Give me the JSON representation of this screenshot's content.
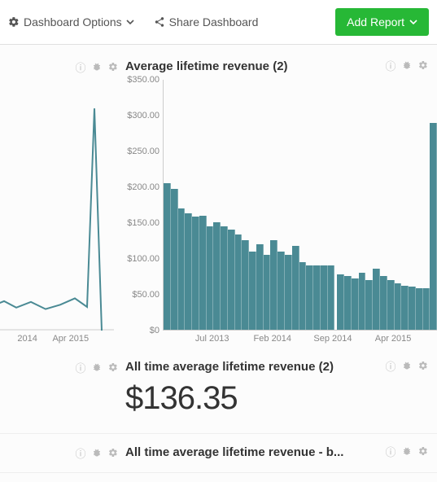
{
  "toolbar": {
    "options_label": "Dashboard Options",
    "share_label": "Share Dashboard",
    "add_report_label": "Add Report"
  },
  "colors": {
    "series": "#4a8a94",
    "line": "#4a8a94",
    "grid": "#cccccc",
    "axis_text": "#888888",
    "icon": "#bbbbbb",
    "accent": "#27b836",
    "bg": "#fcfcfc"
  },
  "left_partial_chart": {
    "type": "line",
    "x_labels": [
      {
        "label": "2014",
        "pos_pct": 24
      },
      {
        "label": "Apr 2015",
        "pos_pct": 62
      }
    ],
    "ylim": [
      0,
      350
    ],
    "points": [
      {
        "x": 0,
        "y": 34
      },
      {
        "x": 10,
        "y": 41
      },
      {
        "x": 20,
        "y": 32
      },
      {
        "x": 32,
        "y": 40
      },
      {
        "x": 44,
        "y": 30
      },
      {
        "x": 56,
        "y": 36
      },
      {
        "x": 68,
        "y": 45
      },
      {
        "x": 78,
        "y": 33
      },
      {
        "x": 84,
        "y": 310
      },
      {
        "x": 90,
        "y": 0
      }
    ],
    "line_color": "#4a8a94",
    "line_width": 2,
    "axis_visible_bottom": true
  },
  "main_chart": {
    "title": "Average lifetime revenue (2)",
    "type": "bar",
    "ylim": [
      0,
      350
    ],
    "ytick_step": 50,
    "ytick_labels": [
      "$0",
      "$50.00",
      "$100.00",
      "$150.00",
      "$200.00",
      "$250.00",
      "$300.00",
      "$350.00"
    ],
    "x_labels": [
      {
        "label": "Jul 2013",
        "pos_pct": 18
      },
      {
        "label": "Feb 2014",
        "pos_pct": 40
      },
      {
        "label": "Sep 2014",
        "pos_pct": 62
      },
      {
        "label": "Apr 2015",
        "pos_pct": 84
      }
    ],
    "bar_color": "#4a8a94",
    "values": [
      205,
      197,
      170,
      163,
      158,
      160,
      145,
      150,
      145,
      140,
      133,
      125,
      110,
      120,
      105,
      125,
      110,
      105,
      118,
      95,
      90,
      90,
      90,
      90,
      78,
      75,
      72,
      80,
      70,
      85,
      75,
      70,
      65,
      62,
      60,
      58,
      58,
      290
    ],
    "gap_after_index": 23,
    "background": "#ffffff"
  },
  "metric_panel": {
    "title": "All time average lifetime revenue (2)",
    "value": "$136.35"
  },
  "bottom_panel": {
    "title": "All time average lifetime revenue - b..."
  }
}
